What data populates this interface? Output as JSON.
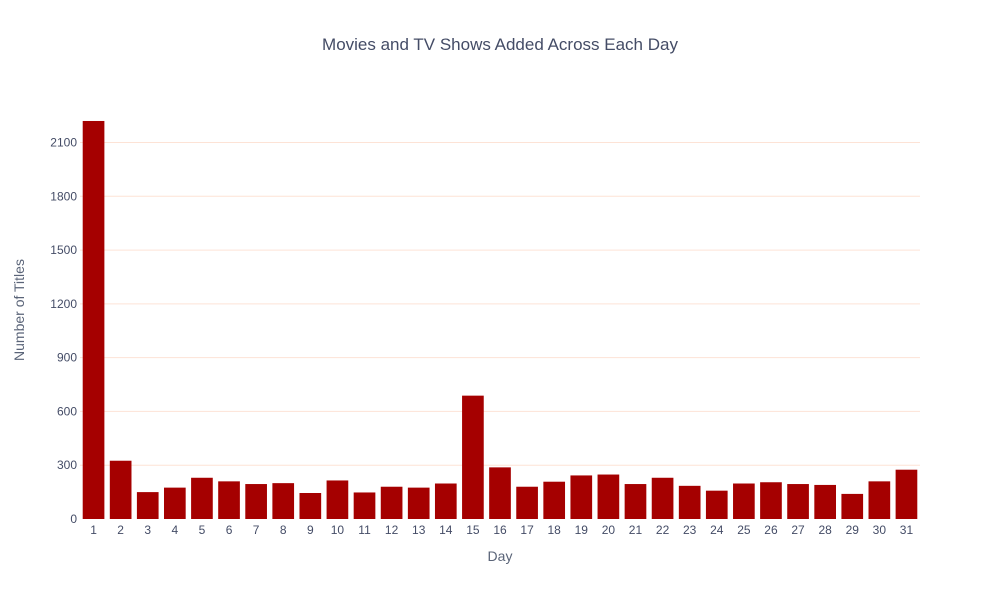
{
  "chart_data": {
    "type": "bar",
    "title": "Movies and TV Shows Added Across Each Day",
    "xlabel": "Day",
    "ylabel": "Number of Titles",
    "categories": [
      "1",
      "2",
      "3",
      "4",
      "5",
      "6",
      "7",
      "8",
      "9",
      "10",
      "11",
      "12",
      "13",
      "14",
      "15",
      "16",
      "17",
      "18",
      "19",
      "20",
      "21",
      "22",
      "23",
      "24",
      "25",
      "26",
      "27",
      "28",
      "29",
      "30",
      "31"
    ],
    "values": [
      2220,
      325,
      150,
      175,
      230,
      210,
      195,
      200,
      145,
      215,
      148,
      180,
      175,
      198,
      688,
      288,
      180,
      208,
      243,
      248,
      195,
      230,
      185,
      158,
      198,
      205,
      195,
      190,
      140,
      210,
      275
    ],
    "ylim": [
      0,
      2337
    ],
    "yticks": [
      0,
      300,
      600,
      900,
      1200,
      1500,
      1800,
      2100
    ],
    "bar_color": "#a50000",
    "grid_color": "#fde3d6",
    "grid": true,
    "legend": false
  }
}
